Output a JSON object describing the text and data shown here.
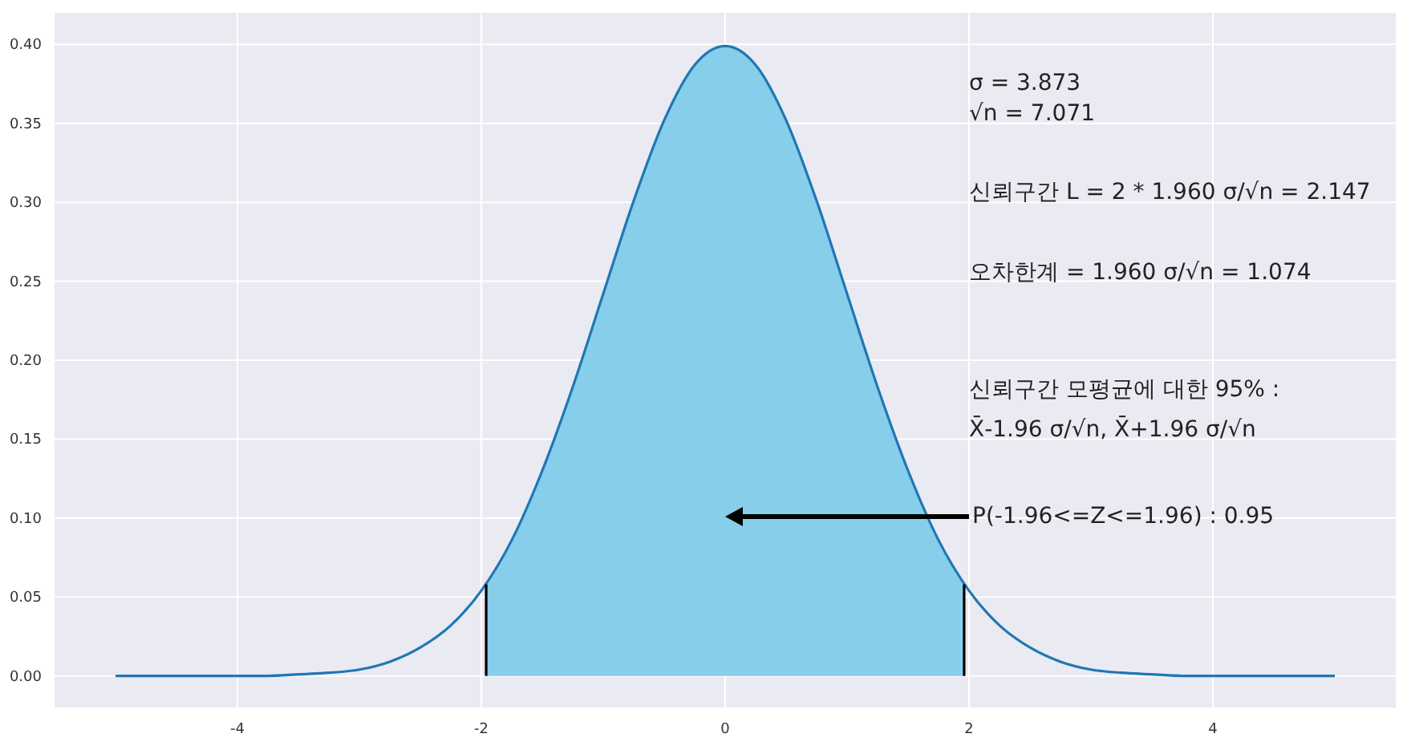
{
  "chart_data": {
    "type": "line",
    "xlim": [
      -5.5,
      5.5
    ],
    "ylim": [
      -0.02,
      0.42
    ],
    "xticks": [
      -4,
      -2,
      0,
      2,
      4
    ],
    "yticks": [
      {
        "value": 0,
        "label": "0.00"
      },
      {
        "value": 0.05,
        "label": "0.05"
      },
      {
        "value": 0.1,
        "label": "0.10"
      },
      {
        "value": 0.15,
        "label": "0.15"
      },
      {
        "value": 0.2,
        "label": "0.20"
      },
      {
        "value": 0.25,
        "label": "0.25"
      },
      {
        "value": 0.3,
        "label": "0.30"
      },
      {
        "value": 0.35,
        "label": "0.35"
      },
      {
        "value": 0.4,
        "label": "0.40"
      }
    ],
    "grid": true,
    "series": [
      {
        "type": "area",
        "color": "#87ceeb",
        "x": [
          -1.96,
          -1.75,
          -1.5,
          -1.25,
          -1,
          -0.75,
          -0.5,
          -0.25,
          0,
          0.25,
          0.5,
          0.75,
          1,
          1.25,
          1.5,
          1.75,
          1.96
        ],
        "values": [
          0.058,
          0.086,
          0.13,
          0.183,
          0.242,
          0.301,
          0.352,
          0.387,
          0.399,
          0.387,
          0.352,
          0.301,
          0.242,
          0.183,
          0.13,
          0.086,
          0.058
        ]
      },
      {
        "color": "#1f77b4",
        "x": [
          -5,
          -4.75,
          -4.5,
          -4.25,
          -4,
          -3.75,
          -3.5,
          -3.25,
          -3,
          -2.75,
          -2.5,
          -2.25,
          -2,
          -1.75,
          -1.5,
          -1.25,
          -1,
          -0.75,
          -0.5,
          -0.25,
          0,
          0.25,
          0.5,
          0.75,
          1,
          1.25,
          1.5,
          1.75,
          2,
          2.25,
          2.5,
          2.75,
          3,
          3.25,
          3.5,
          3.75,
          4,
          4.25,
          4.5,
          4.75,
          5
        ],
        "values": [
          0,
          0,
          0,
          0,
          0,
          0,
          0.001,
          0.002,
          0.004,
          0.009,
          0.018,
          0.032,
          0.054,
          0.086,
          0.13,
          0.183,
          0.242,
          0.301,
          0.352,
          0.387,
          0.399,
          0.387,
          0.352,
          0.301,
          0.242,
          0.183,
          0.13,
          0.086,
          0.054,
          0.032,
          0.018,
          0.009,
          0.004,
          0.002,
          0.001,
          0,
          0,
          0,
          0,
          0,
          0
        ]
      },
      {
        "color": "#000000",
        "x": [
          -1.96,
          -1.96
        ],
        "values": [
          0,
          0.058
        ]
      },
      {
        "color": "#000000",
        "x": [
          1.96,
          1.96
        ],
        "values": [
          0,
          0.058
        ]
      }
    ],
    "annotations": [
      "σ = 3.873",
      "√n = 7.071",
      "신뢰구간 L = 2 * 1.960 σ/√n = 2.147",
      "오차한계 = 1.960 σ/√n = 1.074",
      "신뢰구간 모평균에 대한 95% :",
      "X̄-1.96 σ/√n, X̄+1.96 σ/√n",
      "P(-1.96<=Z<=1.96) : 0.95"
    ]
  }
}
